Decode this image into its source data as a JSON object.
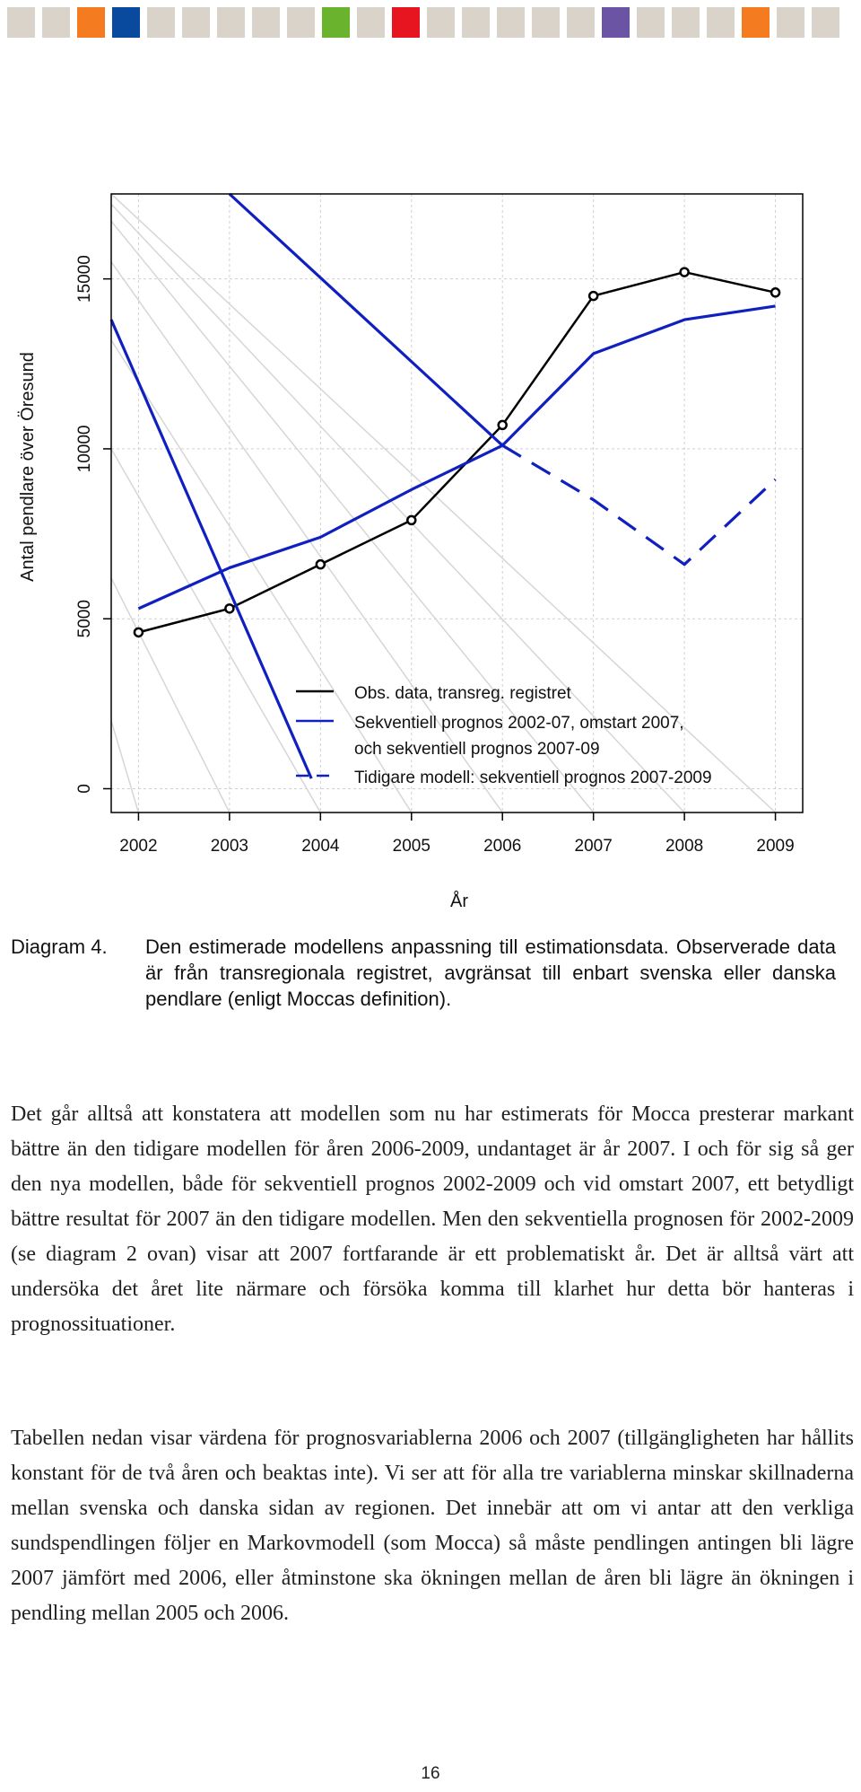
{
  "header": {
    "color_bar": [
      "#d9d3c9",
      "#d9d3c9",
      "#f47b20",
      "#0a4a9e",
      "#d9d3c9",
      "#d9d3c9",
      "#d9d3c9",
      "#d9d3c9",
      "#d9d3c9",
      "#6ab42d",
      "#d9d3c9",
      "#e6151f",
      "#d9d3c9",
      "#d9d3c9",
      "#d9d3c9",
      "#d9d3c9",
      "#d9d3c9",
      "#6a54a3",
      "#d9d3c9",
      "#d9d3c9",
      "#d9d3c9",
      "#f47b20",
      "#d9d3c9",
      "#d9d3c9"
    ]
  },
  "chart_data": {
    "type": "line",
    "xlabel": "År",
    "ylabel": "Antal pendlare över Öresund",
    "x": [
      2002,
      2003,
      2004,
      2005,
      2006,
      2007,
      2008,
      2009
    ],
    "xlim": [
      2001.7,
      2009.3
    ],
    "ylim": [
      -700,
      17500
    ],
    "yticks": [
      0,
      5000,
      10000,
      15000
    ],
    "grid": true,
    "legend_position": "bottom-center",
    "series": [
      {
        "name": "Obs. data, transreg. registret",
        "color": "#000000",
        "style": "solid-markers",
        "x": [
          2002,
          2003,
          2004,
          2005,
          2006,
          2007,
          2008,
          2009
        ],
        "y": [
          4600,
          5300,
          6600,
          7900,
          10700,
          14500,
          15200,
          14600
        ]
      },
      {
        "name": "Sekventiell prognos 2002-07, omstart 2007,",
        "name_line2": "och sekventiell prognos 2007-09",
        "color": "#1020c0",
        "style": "solid",
        "x": [
          2002,
          2003,
          2004,
          2005,
          2006,
          2007,
          2008,
          2009
        ],
        "y": [
          5300,
          6500,
          7400,
          8800,
          10100,
          12800,
          13800,
          14200
        ]
      },
      {
        "name": "Tidigare modell: sekventiell prognos 2007-2009",
        "color": "#1020c0",
        "style": "dashed",
        "x": [
          2006,
          2007,
          2008,
          2009
        ],
        "y": [
          10100,
          8500,
          6600,
          9100
        ]
      },
      {
        "name": "",
        "color": "#1020c0",
        "style": "solid",
        "x": [
          2003,
          2006
        ],
        "y": [
          17500,
          10100
        ]
      },
      {
        "name": "",
        "color": "#1020c0",
        "style": "solid",
        "x": [
          2001.7,
          2003.9
        ],
        "y": [
          13800,
          300
        ]
      }
    ]
  },
  "caption": {
    "label": "Diagram 4.",
    "text": "Den estimerade modellens anpassning till estimationsdata. Observerade data är från transregionala registret, avgränsat till enbart svenska eller danska pendlare (enligt Moccas definition)."
  },
  "paragraphs": [
    "Det går alltså att konstatera att modellen som nu har estimerats för Mocca presterar markant bättre än den tidigare modellen för åren 2006-2009, undantaget är år 2007. I och för sig så ger den nya modellen, både för sekventiell prognos 2002-2009 och vid omstart 2007, ett betydligt bättre resultat för 2007 än den tidigare modellen. Men den sekventiella prognosen för 2002-2009 (se diagram 2 ovan) visar att 2007 fortfarande är ett problematiskt år. Det är alltså värt att undersöka det året lite närmare och försöka komma till klarhet hur detta bör hanteras i prognossituationer.",
    "Tabellen nedan visar värdena för prognosvariablerna 2006 och 2007 (tillgängligheten har hållits konstant för de två åren och beaktas inte). Vi ser att för alla tre variablerna minskar skillnaderna mellan svenska och danska sidan av regionen. Det innebär att om vi antar att den verkliga sundspendlingen följer en Markovmodell (som Mocca) så måste pendlingen antingen bli lägre 2007 jämfört med 2006, eller åtminstone ska ökningen mellan de åren bli lägre än ökningen i pendling mellan 2005 och 2006."
  ],
  "page_number": "16"
}
